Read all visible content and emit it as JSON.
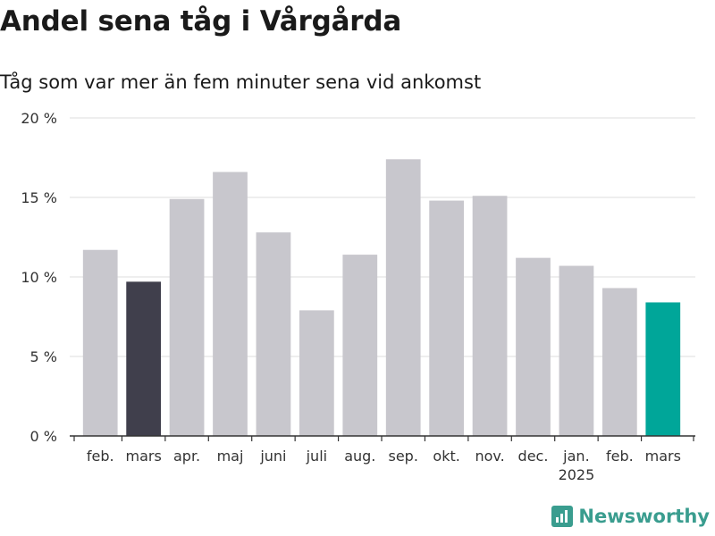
{
  "header": {
    "title": "Andel sena tåg i Vårgårda",
    "subtitle": "Tåg som var mer än fem minuter sena vid ankomst"
  },
  "branding": {
    "logo_text": "Newsworthy",
    "icon": "bar-chart-icon",
    "color": "#3a9d8f"
  },
  "chart_data": {
    "type": "bar",
    "categories": [
      "feb.",
      "mars",
      "apr.",
      "maj",
      "juni",
      "juli",
      "aug.",
      "sep.",
      "okt.",
      "nov.",
      "dec.",
      "jan.",
      "feb.",
      "mars"
    ],
    "year_labels": [
      {
        "index": 11,
        "label": "2025"
      }
    ],
    "values": [
      11.7,
      9.7,
      14.9,
      16.6,
      12.8,
      7.9,
      11.4,
      17.4,
      14.8,
      15.1,
      11.2,
      10.7,
      9.3,
      8.4
    ],
    "colors": [
      "#c8c7cd",
      "#403f4c",
      "#c8c7cd",
      "#c8c7cd",
      "#c8c7cd",
      "#c8c7cd",
      "#c8c7cd",
      "#c8c7cd",
      "#c8c7cd",
      "#c8c7cd",
      "#c8c7cd",
      "#c8c7cd",
      "#c8c7cd",
      "#00a699"
    ],
    "yticks": [
      0,
      5,
      10,
      15,
      20
    ],
    "ytick_labels": [
      "0 %",
      "5 %",
      "10 %",
      "15 %",
      "20 %"
    ],
    "ylim": [
      0,
      20
    ],
    "grid": true
  }
}
